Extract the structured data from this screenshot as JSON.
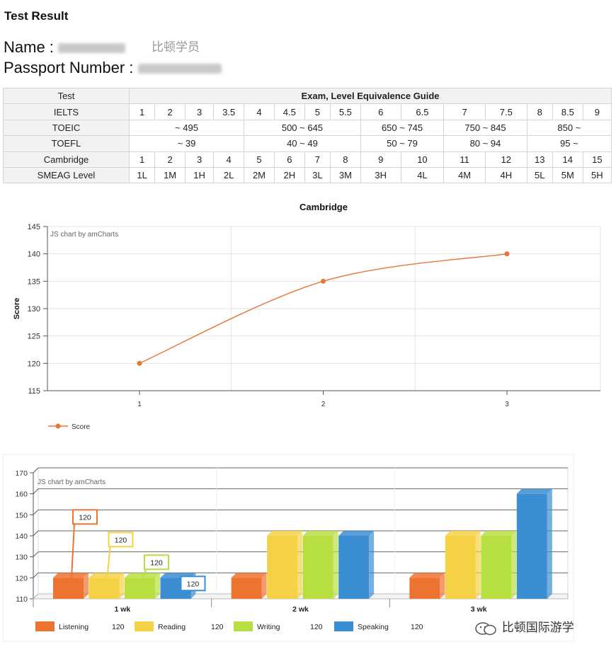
{
  "page": {
    "title": "Test Result",
    "name_label": "Name :",
    "name_tag": "比顿学员",
    "passport_label": "Passport Number :"
  },
  "guide": {
    "header_left": "Test",
    "header_right": "Exam, Level Equivalence Guide",
    "rows": [
      {
        "label": "IELTS",
        "cells": [
          [
            "1",
            1
          ],
          [
            "2",
            1
          ],
          [
            "3",
            1
          ],
          [
            "3.5",
            1
          ],
          [
            "4",
            1
          ],
          [
            "4.5",
            1
          ],
          [
            "5",
            1
          ],
          [
            "5.5",
            1
          ],
          [
            "6",
            1
          ],
          [
            "6.5",
            1
          ],
          [
            "7",
            1
          ],
          [
            "7.5",
            1
          ],
          [
            "8",
            1
          ],
          [
            "8.5",
            1
          ],
          [
            "9",
            1
          ]
        ]
      },
      {
        "label": "TOEIC",
        "cells": [
          [
            "~ 495",
            4
          ],
          [
            "500 ~ 645",
            4
          ],
          [
            "650 ~ 745",
            2
          ],
          [
            "750 ~ 845",
            2
          ],
          [
            "850 ~",
            3
          ]
        ]
      },
      {
        "label": "TOEFL",
        "cells": [
          [
            "~ 39",
            4
          ],
          [
            "40 ~ 49",
            4
          ],
          [
            "50 ~ 79",
            2
          ],
          [
            "80 ~ 94",
            2
          ],
          [
            "95 ~",
            3
          ]
        ]
      },
      {
        "label": "Cambridge",
        "cells": [
          [
            "1",
            1
          ],
          [
            "2",
            1
          ],
          [
            "3",
            1
          ],
          [
            "4",
            1
          ],
          [
            "5",
            1
          ],
          [
            "6",
            1
          ],
          [
            "7",
            1
          ],
          [
            "8",
            1
          ],
          [
            "9",
            1
          ],
          [
            "10",
            1
          ],
          [
            "11",
            1
          ],
          [
            "12",
            1
          ],
          [
            "13",
            1
          ],
          [
            "14",
            1
          ],
          [
            "15",
            1
          ]
        ]
      },
      {
        "label": "SMEAG Level",
        "cells": [
          [
            "1L",
            1
          ],
          [
            "1M",
            1
          ],
          [
            "1H",
            1
          ],
          [
            "2L",
            1
          ],
          [
            "2M",
            1
          ],
          [
            "2H",
            1
          ],
          [
            "3L",
            1
          ],
          [
            "3M",
            1
          ],
          [
            "3H",
            1
          ],
          [
            "4L",
            1
          ],
          [
            "4M",
            1
          ],
          [
            "4H",
            1
          ],
          [
            "5L",
            1
          ],
          [
            "5M",
            1
          ],
          [
            "5H",
            1
          ]
        ]
      }
    ]
  },
  "chart_data": [
    {
      "type": "line",
      "title": "Cambridge",
      "credit": "JS chart by amCharts",
      "ylabel": "Score",
      "x": [
        1,
        2,
        3
      ],
      "x_ticks": [
        "1",
        "2",
        "3"
      ],
      "ylim": [
        115,
        145
      ],
      "y_ticks": [
        115,
        120,
        125,
        130,
        135,
        140,
        145
      ],
      "series": [
        {
          "name": "Score",
          "values": [
            120,
            135,
            140
          ],
          "color": "#e8763a"
        }
      ],
      "legend_position": "bottom-left",
      "grid": true
    },
    {
      "type": "bar",
      "credit": "JS chart by amCharts",
      "categories": [
        "1 wk",
        "2 wk",
        "3 wk"
      ],
      "ylim": [
        110,
        170
      ],
      "y_ticks": [
        110,
        120,
        130,
        140,
        150,
        160,
        170
      ],
      "series": [
        {
          "name": "Listening",
          "values": [
            120,
            120,
            120
          ],
          "color": "#ee7331",
          "legend_value": "120"
        },
        {
          "name": "Reading",
          "values": [
            120,
            140,
            140
          ],
          "color": "#f5d146",
          "legend_value": "120"
        },
        {
          "name": "Writing",
          "values": [
            120,
            140,
            140
          ],
          "color": "#b8df42",
          "legend_value": "120"
        },
        {
          "name": "Speaking",
          "values": [
            120,
            140,
            160
          ],
          "color": "#3b8ed2",
          "legend_value": "120"
        }
      ],
      "data_labels_category": "1 wk",
      "legend_position": "bottom",
      "grid": true
    }
  ],
  "watermark": {
    "text": "比顿国际游学"
  }
}
